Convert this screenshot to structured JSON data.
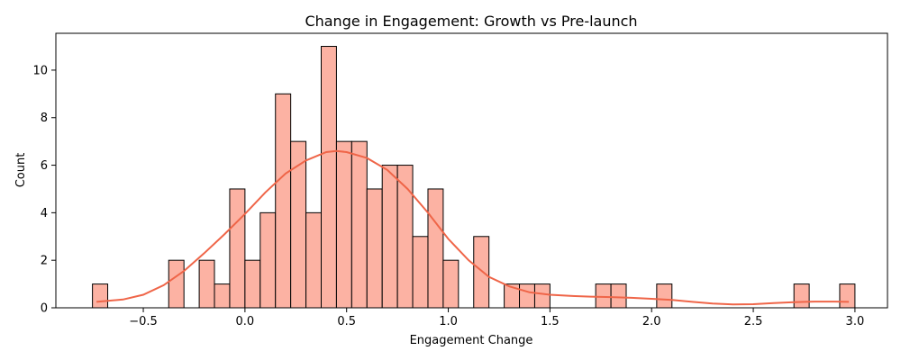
{
  "chart_data": {
    "type": "bar",
    "title": "Change in Engagement: Growth vs Pre-launch",
    "xlabel": "Engagement Change",
    "ylabel": "Count",
    "bin_width": 0.075,
    "bins": [
      {
        "x": -0.75,
        "count": 1
      },
      {
        "x": -0.375,
        "count": 2
      },
      {
        "x": -0.225,
        "count": 2
      },
      {
        "x": -0.15,
        "count": 1
      },
      {
        "x": -0.075,
        "count": 5
      },
      {
        "x": 0.0,
        "count": 2
      },
      {
        "x": 0.075,
        "count": 4
      },
      {
        "x": 0.15,
        "count": 9
      },
      {
        "x": 0.225,
        "count": 7
      },
      {
        "x": 0.3,
        "count": 4
      },
      {
        "x": 0.375,
        "count": 11
      },
      {
        "x": 0.45,
        "count": 7
      },
      {
        "x": 0.525,
        "count": 7
      },
      {
        "x": 0.6,
        "count": 5
      },
      {
        "x": 0.675,
        "count": 6
      },
      {
        "x": 0.75,
        "count": 6
      },
      {
        "x": 0.825,
        "count": 3
      },
      {
        "x": 0.9,
        "count": 5
      },
      {
        "x": 0.975,
        "count": 2
      },
      {
        "x": 1.125,
        "count": 3
      },
      {
        "x": 1.275,
        "count": 1
      },
      {
        "x": 1.35,
        "count": 1
      },
      {
        "x": 1.425,
        "count": 1
      },
      {
        "x": 1.725,
        "count": 1
      },
      {
        "x": 1.8,
        "count": 1
      },
      {
        "x": 2.025,
        "count": 1
      },
      {
        "x": 2.7,
        "count": 1
      },
      {
        "x": 2.925,
        "count": 1
      }
    ],
    "kde": [
      [
        -0.73,
        0.25
      ],
      [
        -0.6,
        0.35
      ],
      [
        -0.5,
        0.55
      ],
      [
        -0.4,
        0.95
      ],
      [
        -0.3,
        1.55
      ],
      [
        -0.2,
        2.3
      ],
      [
        -0.1,
        3.1
      ],
      [
        0.0,
        3.95
      ],
      [
        0.1,
        4.85
      ],
      [
        0.2,
        5.65
      ],
      [
        0.3,
        6.2
      ],
      [
        0.4,
        6.55
      ],
      [
        0.45,
        6.6
      ],
      [
        0.5,
        6.55
      ],
      [
        0.6,
        6.3
      ],
      [
        0.7,
        5.8
      ],
      [
        0.8,
        5.0
      ],
      [
        0.9,
        4.0
      ],
      [
        1.0,
        2.9
      ],
      [
        1.1,
        2.0
      ],
      [
        1.2,
        1.3
      ],
      [
        1.3,
        0.9
      ],
      [
        1.4,
        0.65
      ],
      [
        1.5,
        0.55
      ],
      [
        1.6,
        0.5
      ],
      [
        1.7,
        0.47
      ],
      [
        1.8,
        0.45
      ],
      [
        1.9,
        0.42
      ],
      [
        2.0,
        0.38
      ],
      [
        2.1,
        0.33
      ],
      [
        2.2,
        0.25
      ],
      [
        2.3,
        0.18
      ],
      [
        2.4,
        0.14
      ],
      [
        2.5,
        0.15
      ],
      [
        2.6,
        0.2
      ],
      [
        2.7,
        0.24
      ],
      [
        2.8,
        0.26
      ],
      [
        2.9,
        0.26
      ],
      [
        2.97,
        0.25
      ]
    ],
    "xlim": [
      -0.93,
      3.16
    ],
    "ylim": [
      0,
      11.55
    ],
    "xticks": [
      -0.5,
      0.0,
      0.5,
      1.0,
      1.5,
      2.0,
      2.5,
      3.0
    ],
    "xtick_labels": [
      "−0.5",
      "0.0",
      "0.5",
      "1.0",
      "1.5",
      "2.0",
      "2.5",
      "3.0"
    ],
    "yticks": [
      0,
      2,
      4,
      6,
      8,
      10
    ],
    "ytick_labels": [
      "0",
      "2",
      "4",
      "6",
      "8",
      "10"
    ],
    "bar_color": "#fcb2a3",
    "kde_color": "#ef6548",
    "grid": false
  }
}
